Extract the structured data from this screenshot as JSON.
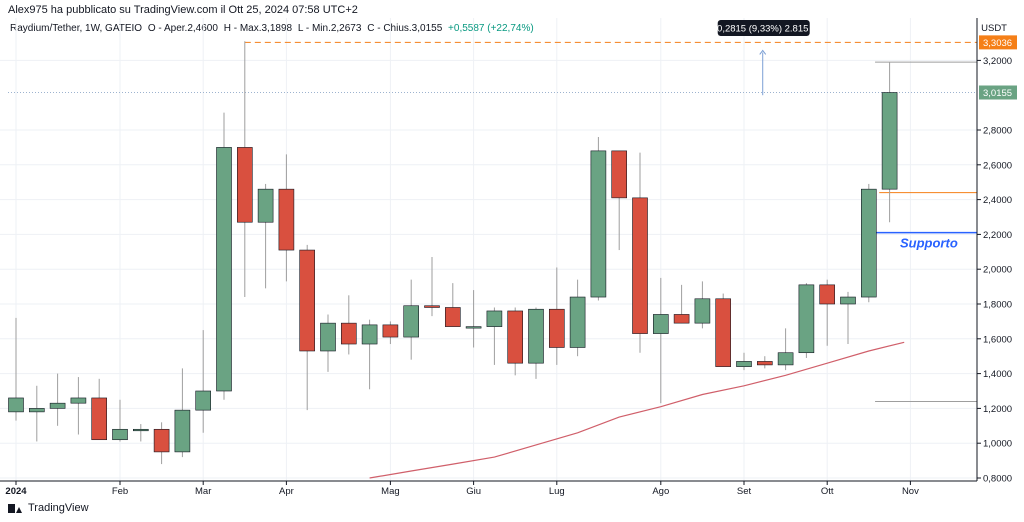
{
  "header": {
    "published": "Alex975 ha pubblicato su TradingView.com il Ott 25, 2024 07:58 UTC+2"
  },
  "legend": {
    "symbol": "Raydium/Tether, 1W, GATEIO",
    "open": "O - Aper.2,4600",
    "high": "H - Max.3,1898",
    "low": "L - Min.2,2673",
    "close": "C - Chius.3,0155",
    "change": "+0,5587 (+22,74%)"
  },
  "footer": {
    "brand": "TradingView"
  },
  "colors": {
    "up": "#6aa383",
    "down": "#d9503f",
    "ma": "#d05f6a",
    "orange": "#f57f17",
    "support": "#2962ff"
  },
  "chart_data": {
    "type": "candlestick",
    "currency_label": "USDT",
    "ylim": [
      0.8,
      3.3
    ],
    "y_ticks": [
      "0,8000",
      "1,0000",
      "1,2000",
      "1,4000",
      "1,6000",
      "1,8000",
      "2,0000",
      "2,2000",
      "2,4000",
      "2,6000",
      "2,8000",
      "3,2000"
    ],
    "x_labels": [
      {
        "label": "2024",
        "index": 0
      },
      {
        "label": "Feb",
        "index": 5
      },
      {
        "label": "Mar",
        "index": 9
      },
      {
        "label": "Apr",
        "index": 13
      },
      {
        "label": "Mag",
        "index": 18
      },
      {
        "label": "Giu",
        "index": 22
      },
      {
        "label": "Lug",
        "index": 26
      },
      {
        "label": "Ago",
        "index": 31
      },
      {
        "label": "Set",
        "index": 35
      },
      {
        "label": "Ott",
        "index": 39
      },
      {
        "label": "Nov",
        "index": 43
      }
    ],
    "candles": [
      {
        "o": 1.18,
        "h": 1.72,
        "l": 1.13,
        "c": 1.26
      },
      {
        "o": 1.18,
        "h": 1.33,
        "l": 1.01,
        "c": 1.2
      },
      {
        "o": 1.2,
        "h": 1.4,
        "l": 1.1,
        "c": 1.23
      },
      {
        "o": 1.23,
        "h": 1.38,
        "l": 1.05,
        "c": 1.26
      },
      {
        "o": 1.26,
        "h": 1.37,
        "l": 1.02,
        "c": 1.02
      },
      {
        "o": 1.02,
        "h": 1.25,
        "l": 1.01,
        "c": 1.08
      },
      {
        "o": 1.08,
        "h": 1.11,
        "l": 1.01,
        "c": 1.08
      },
      {
        "o": 1.08,
        "h": 1.12,
        "l": 0.88,
        "c": 0.95
      },
      {
        "o": 0.95,
        "h": 1.43,
        "l": 0.92,
        "c": 1.19
      },
      {
        "o": 1.19,
        "h": 1.65,
        "l": 1.06,
        "c": 1.3
      },
      {
        "o": 1.3,
        "h": 2.9,
        "l": 1.25,
        "c": 2.7
      },
      {
        "o": 2.7,
        "h": 3.31,
        "l": 1.84,
        "c": 2.27
      },
      {
        "o": 2.27,
        "h": 2.49,
        "l": 1.89,
        "c": 2.46
      },
      {
        "o": 2.46,
        "h": 2.66,
        "l": 1.93,
        "c": 2.11
      },
      {
        "o": 2.11,
        "h": 2.14,
        "l": 1.19,
        "c": 1.53
      },
      {
        "o": 1.53,
        "h": 1.74,
        "l": 1.41,
        "c": 1.69
      },
      {
        "o": 1.69,
        "h": 1.85,
        "l": 1.51,
        "c": 1.57
      },
      {
        "o": 1.57,
        "h": 1.71,
        "l": 1.31,
        "c": 1.68
      },
      {
        "o": 1.68,
        "h": 1.7,
        "l": 1.57,
        "c": 1.61
      },
      {
        "o": 1.61,
        "h": 1.94,
        "l": 1.48,
        "c": 1.79
      },
      {
        "o": 1.79,
        "h": 2.07,
        "l": 1.73,
        "c": 1.78
      },
      {
        "o": 1.78,
        "h": 1.92,
        "l": 1.67,
        "c": 1.67
      },
      {
        "o": 1.67,
        "h": 1.88,
        "l": 1.55,
        "c": 1.67
      },
      {
        "o": 1.67,
        "h": 1.78,
        "l": 1.45,
        "c": 1.76
      },
      {
        "o": 1.76,
        "h": 1.78,
        "l": 1.39,
        "c": 1.46
      },
      {
        "o": 1.46,
        "h": 1.78,
        "l": 1.37,
        "c": 1.77
      },
      {
        "o": 1.77,
        "h": 2.01,
        "l": 1.45,
        "c": 1.55
      },
      {
        "o": 1.55,
        "h": 1.94,
        "l": 1.5,
        "c": 1.84
      },
      {
        "o": 1.84,
        "h": 2.76,
        "l": 1.82,
        "c": 2.68
      },
      {
        "o": 2.68,
        "h": 2.68,
        "l": 2.11,
        "c": 2.41
      },
      {
        "o": 2.41,
        "h": 2.67,
        "l": 1.52,
        "c": 1.63
      },
      {
        "o": 1.63,
        "h": 1.95,
        "l": 1.23,
        "c": 1.74
      },
      {
        "o": 1.74,
        "h": 1.91,
        "l": 1.69,
        "c": 1.69
      },
      {
        "o": 1.69,
        "h": 1.93,
        "l": 1.66,
        "c": 1.83
      },
      {
        "o": 1.83,
        "h": 1.86,
        "l": 1.44,
        "c": 1.44
      },
      {
        "o": 1.44,
        "h": 1.52,
        "l": 1.42,
        "c": 1.47
      },
      {
        "o": 1.47,
        "h": 1.5,
        "l": 1.43,
        "c": 1.45
      },
      {
        "o": 1.45,
        "h": 1.66,
        "l": 1.42,
        "c": 1.52
      },
      {
        "o": 1.52,
        "h": 1.92,
        "l": 1.49,
        "c": 1.91
      },
      {
        "o": 1.91,
        "h": 1.94,
        "l": 1.56,
        "c": 1.8
      },
      {
        "o": 1.8,
        "h": 1.87,
        "l": 1.57,
        "c": 1.84
      },
      {
        "o": 1.84,
        "h": 2.49,
        "l": 1.81,
        "c": 2.46
      },
      {
        "o": 2.46,
        "h": 3.19,
        "l": 2.27,
        "c": 3.0155
      }
    ],
    "moving_average": [
      {
        "i": 17.0,
        "v": 0.8
      },
      {
        "i": 19.0,
        "v": 0.84
      },
      {
        "i": 21.0,
        "v": 0.88
      },
      {
        "i": 23.0,
        "v": 0.92
      },
      {
        "i": 25.0,
        "v": 0.99
      },
      {
        "i": 27.0,
        "v": 1.06
      },
      {
        "i": 29.0,
        "v": 1.15
      },
      {
        "i": 31.0,
        "v": 1.21
      },
      {
        "i": 33.0,
        "v": 1.28
      },
      {
        "i": 35.0,
        "v": 1.33
      },
      {
        "i": 37.0,
        "v": 1.39
      },
      {
        "i": 39.0,
        "v": 1.46
      },
      {
        "i": 41.0,
        "v": 1.53
      },
      {
        "i": 42.7,
        "v": 1.58
      }
    ],
    "lines": {
      "high_dashed": 3.3036,
      "last_price": 3.0155,
      "upper_gray": 3.19,
      "orange_solid": 2.44,
      "support": 2.21,
      "lower_gray": 1.24
    },
    "price_labels": {
      "high": "3,3036",
      "last": "3,0155"
    },
    "annotation": {
      "text": "0,2815 (9,33%) 2.815",
      "index": 35.9,
      "from": 3.0,
      "to": 3.28
    },
    "support_label": "Supporto"
  }
}
